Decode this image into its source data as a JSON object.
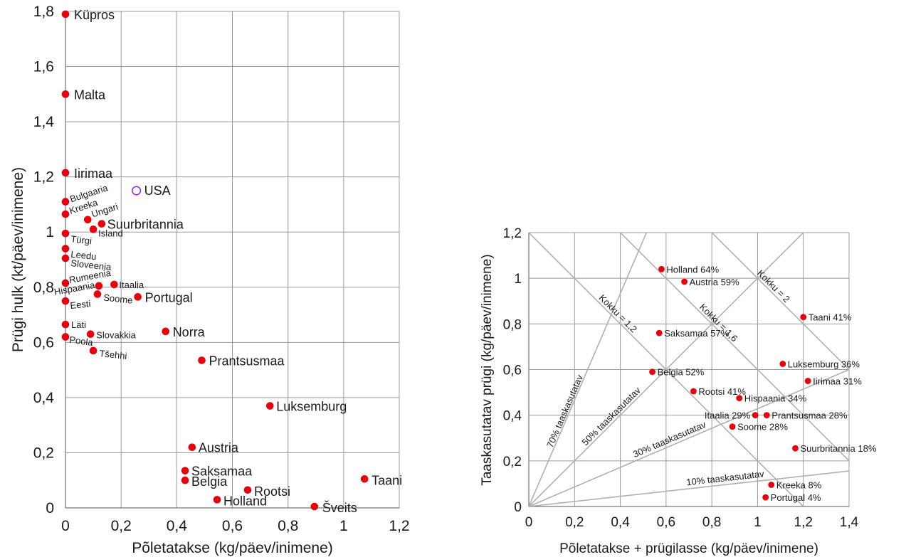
{
  "colors": {
    "point": "#e8000b",
    "usa": "#a020f0",
    "grid": "#9a9a9a",
    "diagonal": "#b0b0b0"
  },
  "chart_data": [
    {
      "type": "scatter",
      "title": "",
      "xlabel": "Põletatakse (kg/päev/inimene)",
      "ylabel": "Prügi hulk (kt/päev/inimene)",
      "xlim": [
        0,
        1.2
      ],
      "ylim": [
        0,
        1.8
      ],
      "xticks": [
        "0",
        "0,2",
        "0,4",
        "0,6",
        "0,8",
        "1",
        "1,2"
      ],
      "yticks": [
        "0",
        "0,2",
        "0,4",
        "0,6",
        "0,8",
        "1",
        "1,2",
        "1,4",
        "1,6",
        "1,8"
      ],
      "grid": true,
      "points": [
        {
          "label": "Küpros",
          "x": 0,
          "y": 1.79
        },
        {
          "label": "Malta",
          "x": 0,
          "y": 1.5
        },
        {
          "label": "Iirimaa",
          "x": 0,
          "y": 1.215
        },
        {
          "label": "USA",
          "x": 0.255,
          "y": 1.15,
          "open": true
        },
        {
          "label": "Bulgaaria",
          "x": 0,
          "y": 1.11
        },
        {
          "label": "Kreeka",
          "x": 0,
          "y": 1.065
        },
        {
          "label": "Ungari",
          "x": 0.08,
          "y": 1.045
        },
        {
          "label": "Suurbritannia",
          "x": 0.13,
          "y": 1.03
        },
        {
          "label": "Island",
          "x": 0.1,
          "y": 1.01
        },
        {
          "label": "Türgi",
          "x": 0,
          "y": 0.995
        },
        {
          "label": "Leedu",
          "x": 0,
          "y": 0.94
        },
        {
          "label": "Sloveenia",
          "x": 0,
          "y": 0.905
        },
        {
          "label": "Rumeenia",
          "x": 0,
          "y": 0.815
        },
        {
          "label": "Hispaania",
          "x": 0.12,
          "y": 0.805
        },
        {
          "label": "Itaalia",
          "x": 0.175,
          "y": 0.81
        },
        {
          "label": "Soome",
          "x": 0.115,
          "y": 0.775
        },
        {
          "label": "Portugal",
          "x": 0.26,
          "y": 0.765
        },
        {
          "label": "Eesti",
          "x": 0,
          "y": 0.75
        },
        {
          "label": "Läti",
          "x": 0,
          "y": 0.665
        },
        {
          "label": "Norra",
          "x": 0.36,
          "y": 0.64
        },
        {
          "label": "Slovakkia",
          "x": 0.09,
          "y": 0.63
        },
        {
          "label": "Poola",
          "x": 0,
          "y": 0.62
        },
        {
          "label": "Tšehhi",
          "x": 0.1,
          "y": 0.57
        },
        {
          "label": "Prantsusmaa",
          "x": 0.49,
          "y": 0.535
        },
        {
          "label": "Luksemburg",
          "x": 0.735,
          "y": 0.37
        },
        {
          "label": "Austria",
          "x": 0.455,
          "y": 0.22
        },
        {
          "label": "Saksamaa",
          "x": 0.43,
          "y": 0.135
        },
        {
          "label": "Belgia",
          "x": 0.43,
          "y": 0.1
        },
        {
          "label": "Taani",
          "x": 1.075,
          "y": 0.105
        },
        {
          "label": "Rootsi",
          "x": 0.655,
          "y": 0.065
        },
        {
          "label": "Holland",
          "x": 0.545,
          "y": 0.03
        },
        {
          "label": "Šveits",
          "x": 0.895,
          "y": 0.005
        }
      ]
    },
    {
      "type": "scatter",
      "title": "",
      "xlabel": "Põletatakse + prügilasse (kg/päev/inimene)",
      "ylabel": "Taaskasutatav prügi (kg/päev/inimene)",
      "xlim": [
        0,
        1.4
      ],
      "ylim": [
        0,
        1.2
      ],
      "xticks": [
        "0",
        "0,2",
        "0,4",
        "0,6",
        "0,8",
        "1",
        "1,2",
        "1,4"
      ],
      "yticks": [
        "0",
        "0,2",
        "0,4",
        "0,6",
        "0,8",
        "1",
        "1,2"
      ],
      "grid": true,
      "ratio_lines": [
        {
          "label": "70% taaskasutatav",
          "share": 0.7
        },
        {
          "label": "50% taaskasutatav",
          "share": 0.5
        },
        {
          "label": "30% taaskasutatav",
          "share": 0.3
        },
        {
          "label": "10% taaskasutatav",
          "share": 0.1
        }
      ],
      "total_lines": [
        {
          "label": "Kokku = 1,2",
          "total": 1.2
        },
        {
          "label": "Kokku = 1,6",
          "total": 1.6
        },
        {
          "label": "Kokku = 2",
          "total": 2.0
        }
      ],
      "points": [
        {
          "label": "Holland 64%",
          "x": 0.58,
          "y": 1.04
        },
        {
          "label": "Austria 59%",
          "x": 0.68,
          "y": 0.985
        },
        {
          "label": "Taani 41%",
          "x": 1.2,
          "y": 0.83
        },
        {
          "label": "Saksamaa 57%",
          "x": 0.57,
          "y": 0.76
        },
        {
          "label": "Luksemburg 36%",
          "x": 1.11,
          "y": 0.625
        },
        {
          "label": "Belgia 52%",
          "x": 0.54,
          "y": 0.59
        },
        {
          "label": "Iirimaa 31%",
          "x": 1.22,
          "y": 0.55
        },
        {
          "label": "Rootsi 41%",
          "x": 0.72,
          "y": 0.505
        },
        {
          "label": "Hispaania 34%",
          "x": 0.92,
          "y": 0.475
        },
        {
          "label": "Itaalia 29%",
          "x": 0.99,
          "y": 0.4
        },
        {
          "label": "Prantsusmaa 28%",
          "x": 1.04,
          "y": 0.4
        },
        {
          "label": "Soome 28%",
          "x": 0.89,
          "y": 0.35
        },
        {
          "label": "Suurbritannia 18%",
          "x": 1.165,
          "y": 0.255
        },
        {
          "label": "Kreeka 8%",
          "x": 1.06,
          "y": 0.095
        },
        {
          "label": "Portugal 4%",
          "x": 1.035,
          "y": 0.04
        }
      ]
    }
  ]
}
